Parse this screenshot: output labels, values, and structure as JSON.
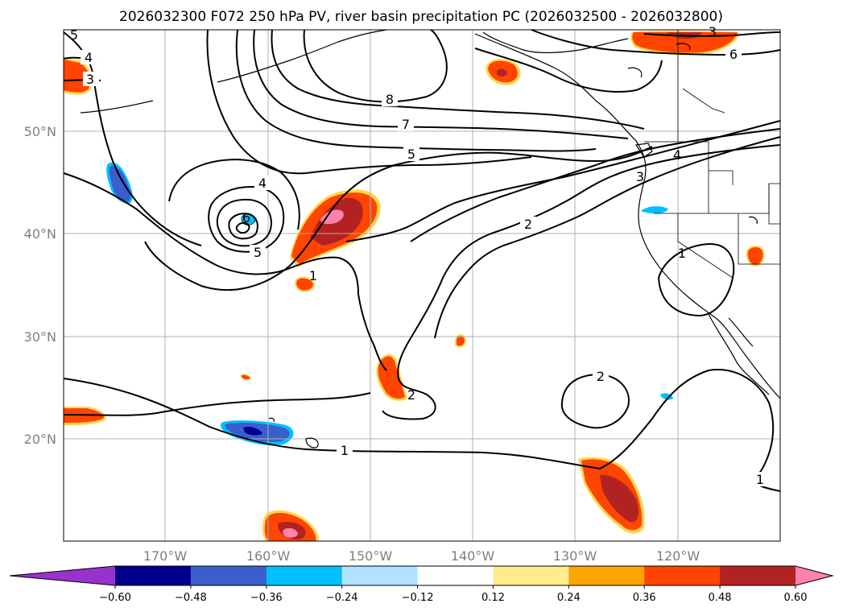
{
  "title": "2026032300 F072 250 hPa PV, river basin precipitation PC (2026032500 - 2026032800)",
  "lat_labels": [
    "50°N",
    "40°N",
    "30°N",
    "20°N"
  ],
  "lon_labels": [
    "170°W",
    "160°W",
    "150°W",
    "140°W",
    "130°W",
    "120°W"
  ],
  "colorbar": {
    "ticks": [
      "−0.60",
      "−0.48",
      "−0.36",
      "−0.24",
      "−0.12",
      "0.12",
      "0.24",
      "0.36",
      "0.48",
      "0.60"
    ],
    "colors": [
      "#9932cc",
      "#00008b",
      "#3a5fcd",
      "#00bfff",
      "#b0e2ff",
      "#ffffff",
      "#ffec8b",
      "#ffa500",
      "#ff4500",
      "#b22222",
      "#ff82ab"
    ]
  },
  "contour_labels": {
    "l5tl": "5",
    "l4tl": "4",
    "l3tl": "3",
    "l8": "8",
    "l7": "7",
    "l5n": "5",
    "l4c": "4",
    "l6c": "6",
    "l5c": "5",
    "l1c": "1",
    "l2mid": "2",
    "l2s": "2",
    "l2e": "2",
    "l1s": "1",
    "l1r": "1",
    "l1b": "1",
    "l3ne": "3",
    "l6ne": "6",
    "l4ne": "4",
    "l3coast": "3"
  }
}
